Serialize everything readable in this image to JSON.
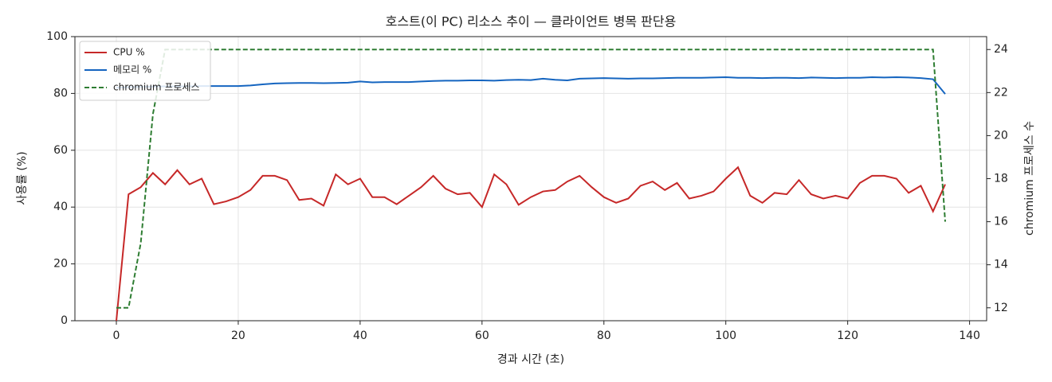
{
  "chart_data": {
    "type": "line",
    "title": "호스트(이 PC) 리소스 추이 — 클라이언트 병목 판단용",
    "x_label": "경과 시간 (초)",
    "y_label": "사용률 (%)",
    "y2_label": "chromium 프로세스 수",
    "x": [
      0,
      2,
      4,
      6,
      8,
      10,
      12,
      14,
      16,
      18,
      20,
      22,
      24,
      26,
      28,
      30,
      32,
      34,
      36,
      38,
      40,
      42,
      44,
      46,
      48,
      50,
      52,
      54,
      56,
      58,
      60,
      62,
      64,
      66,
      68,
      70,
      72,
      74,
      76,
      78,
      80,
      82,
      84,
      86,
      88,
      90,
      92,
      94,
      96,
      98,
      100,
      102,
      104,
      106,
      108,
      110,
      112,
      114,
      116,
      118,
      120,
      122,
      124,
      126,
      128,
      130,
      132,
      134,
      136
    ],
    "series": [
      {
        "name": "CPU %",
        "color": "#c62828",
        "linestyle": "solid",
        "values": [
          0,
          44.5,
          47,
          52,
          48,
          53,
          48,
          50,
          41,
          42,
          43.5,
          46,
          51,
          51,
          49.5,
          42.5,
          43,
          40.5,
          51.5,
          48,
          50,
          43.5,
          43.5,
          41,
          44,
          47,
          51,
          46.5,
          44.5,
          45,
          40,
          51.5,
          48,
          40.8,
          43.5,
          45.5,
          46,
          49,
          51,
          47,
          43.5,
          41.5,
          43,
          47.5,
          49,
          46,
          48.5,
          43,
          44,
          45.5,
          50,
          54,
          44,
          41.5,
          45,
          44.5,
          49.5,
          44.5,
          43,
          44,
          43,
          48.5,
          51,
          51,
          50,
          45,
          47.5,
          38.5,
          48
        ]
      },
      {
        "name": "메모리 %",
        "color": "#1565c0",
        "linestyle": "solid",
        "values": [
          82.0,
          82.2,
          82.3,
          82.4,
          82.5,
          82.5,
          82.5,
          82.6,
          82.6,
          82.6,
          82.6,
          82.8,
          83.2,
          83.5,
          83.6,
          83.7,
          83.7,
          83.6,
          83.7,
          83.8,
          84.2,
          83.9,
          84.0,
          84.0,
          84.0,
          84.2,
          84.4,
          84.5,
          84.5,
          84.6,
          84.6,
          84.5,
          84.7,
          84.8,
          84.7,
          85.2,
          84.8,
          84.6,
          85.2,
          85.3,
          85.4,
          85.3,
          85.2,
          85.3,
          85.3,
          85.4,
          85.5,
          85.5,
          85.5,
          85.6,
          85.7,
          85.5,
          85.5,
          85.4,
          85.5,
          85.5,
          85.4,
          85.6,
          85.5,
          85.4,
          85.5,
          85.5,
          85.7,
          85.6,
          85.7,
          85.6,
          85.4,
          85.0,
          79.8
        ]
      },
      {
        "name": "chromium 프로세스",
        "color": "#2e7d32",
        "linestyle": "dashed",
        "axis": "y2",
        "values": [
          12,
          12,
          15,
          21,
          24,
          24,
          24,
          24,
          24,
          24,
          24,
          24,
          24,
          24,
          24,
          24,
          24,
          24,
          24,
          24,
          24,
          24,
          24,
          24,
          24,
          24,
          24,
          24,
          24,
          24,
          24,
          24,
          24,
          24,
          24,
          24,
          24,
          24,
          24,
          24,
          24,
          24,
          24,
          24,
          24,
          24,
          24,
          24,
          24,
          24,
          24,
          24,
          24,
          24,
          24,
          24,
          24,
          24,
          24,
          24,
          24,
          24,
          24,
          24,
          24,
          24,
          24,
          24,
          16
        ]
      }
    ],
    "xlim": [
      -6.8,
      142.8
    ],
    "xticks": [
      0,
      20,
      40,
      60,
      80,
      100,
      120,
      140
    ],
    "ylim": [
      0,
      100
    ],
    "yticks": [
      0,
      20,
      40,
      60,
      80,
      100
    ],
    "y2lim": [
      11.4,
      24.6
    ],
    "y2ticks": [
      12,
      14,
      16,
      18,
      20,
      22,
      24
    ],
    "grid": true,
    "legend": "upper left"
  }
}
